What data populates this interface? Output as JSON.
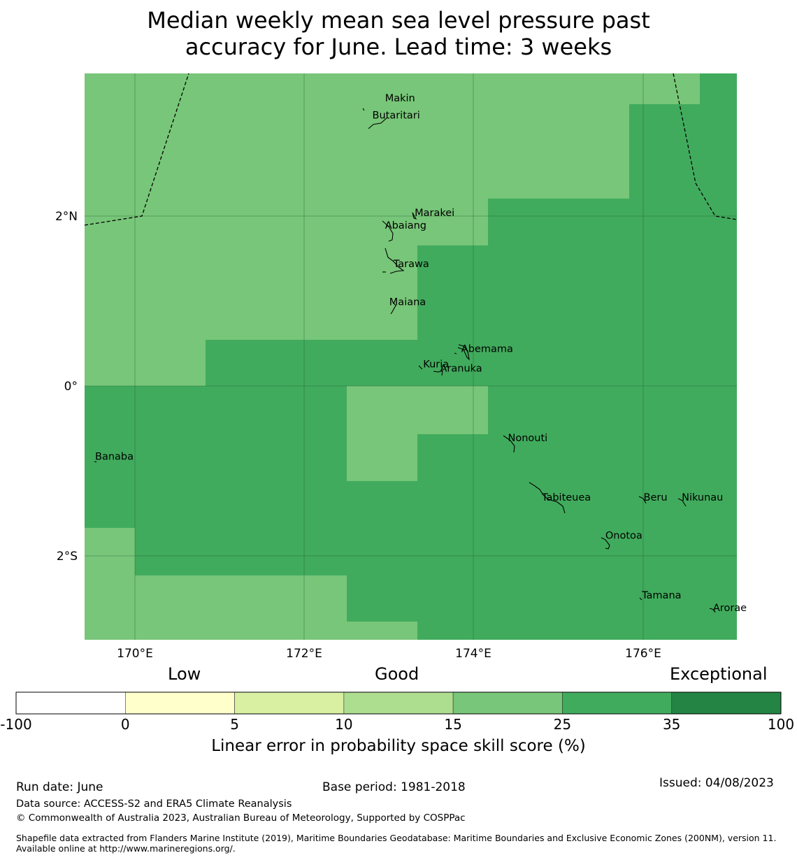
{
  "title": {
    "line1": "Median weekly mean sea level pressure past",
    "line2": "accuracy for June. Lead time: 3 weeks"
  },
  "map": {
    "lon_ticks": [
      "170°E",
      "172°E",
      "174°E",
      "176°E"
    ],
    "lat_ticks": [
      "2°N",
      "0°",
      "2°S"
    ],
    "extent": {
      "lon": [
        169.4,
        177.1
      ],
      "lat": [
        -3.0,
        3.75
      ]
    },
    "skill_regions": [
      {
        "category": "25 to 35",
        "color": "#41ab5d",
        "note": "east and south of the map"
      },
      {
        "category": "15 to 25",
        "color": "#78c679",
        "note": "north-west of the map"
      }
    ],
    "place_labels": [
      {
        "name": "Makin",
        "lon": 172.95,
        "lat": 3.35
      },
      {
        "name": "Butaritari",
        "lon": 172.8,
        "lat": 3.15
      },
      {
        "name": "Marakei",
        "lon": 173.3,
        "lat": 2.0
      },
      {
        "name": "Abaiang",
        "lon": 172.95,
        "lat": 1.85
      },
      {
        "name": "Tarawa",
        "lon": 173.05,
        "lat": 1.4
      },
      {
        "name": "Maiana",
        "lon": 173.0,
        "lat": 0.95
      },
      {
        "name": "Abemama",
        "lon": 173.85,
        "lat": 0.4
      },
      {
        "name": "Kuria",
        "lon": 173.4,
        "lat": 0.22
      },
      {
        "name": "Aranuka",
        "lon": 173.6,
        "lat": 0.17
      },
      {
        "name": "Nonouti",
        "lon": 174.4,
        "lat": -0.65
      },
      {
        "name": "Banaba",
        "lon": 169.53,
        "lat": -0.87
      },
      {
        "name": "Tabiteuea",
        "lon": 174.8,
        "lat": -1.35
      },
      {
        "name": "Beru",
        "lon": 176.0,
        "lat": -1.35
      },
      {
        "name": "Nikunau",
        "lon": 176.45,
        "lat": -1.35
      },
      {
        "name": "Onotoa",
        "lon": 175.55,
        "lat": -1.8
      },
      {
        "name": "Tamana",
        "lon": 175.98,
        "lat": -2.5
      },
      {
        "name": "Arorae",
        "lon": 176.82,
        "lat": -2.65
      }
    ]
  },
  "colorbar": {
    "headings": {
      "low": "Low",
      "good": "Good",
      "exceptional": "Exceptional"
    },
    "ticks": [
      "-100",
      "0",
      "5",
      "10",
      "15",
      "25",
      "35",
      "100"
    ],
    "colors": [
      "#ffffff",
      "#ffffcc",
      "#d9f0a3",
      "#addd8e",
      "#78c679",
      "#41ab5d",
      "#238443"
    ],
    "label": "Linear error in probability space skill score (%)"
  },
  "footer": {
    "run_date": "Run date: June",
    "base_period": "Base period: 1981-2018",
    "issued": "Issued: 04/08/2023",
    "data_source": "Data source: ACCESS-S2 and ERA5 Climate Reanalysis",
    "copyright": "© Commonwealth of Australia 2023, Australian Bureau of Meteorology, Supported by COSPPac",
    "shapefile": "Shapefile data extracted from Flanders Marine Institute (2019), Maritime Boundaries Geodatabase: Maritime Boundaries and Exclusive Economic Zones (200NM), version 11. Available online at http://www.marineregions.org/."
  }
}
